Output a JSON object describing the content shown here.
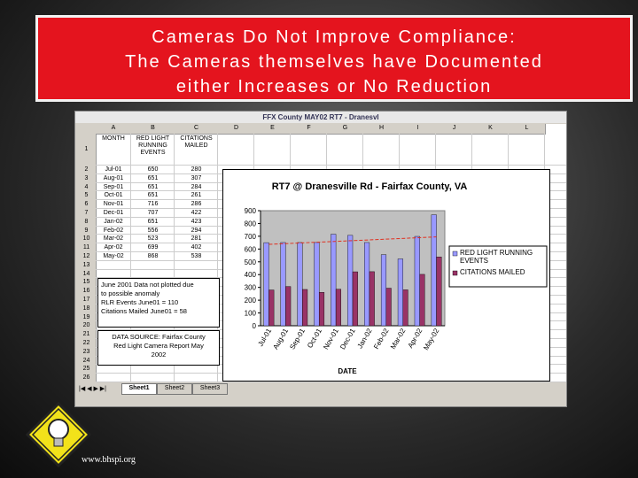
{
  "slide": {
    "title_lines": [
      "Cameras Do Not Improve Compliance:",
      "The Cameras themselves have Documented",
      "either Increases or No Reduction"
    ],
    "footer": "www.bhspi.org"
  },
  "window": {
    "title": "FFX County MAY02 RT7 - Dranesvl",
    "columns": [
      "A",
      "B",
      "C",
      "D",
      "E",
      "F",
      "G",
      "H",
      "I",
      "J",
      "K",
      "L"
    ],
    "row_numbers": [
      1,
      2,
      3,
      4,
      5,
      6,
      7,
      8,
      9,
      10,
      11,
      12,
      13,
      14,
      15,
      16,
      17,
      18,
      19,
      20,
      21,
      22,
      23,
      24,
      25,
      26
    ],
    "month_header": "MONTH",
    "note_lines": [
      "June 2001 Data not plotted due",
      "to possible anomaly",
      "RLR Events June01 = 110",
      "Citations Mailed June01 = 58"
    ],
    "source_lines": [
      "DATA SOURCE: Fairfax County",
      "Red Light Camera Report May",
      "2002"
    ],
    "sheets": [
      "Sheet1",
      "Sheet2",
      "Sheet3"
    ]
  },
  "chart_data": {
    "type": "bar",
    "title": "RT7 @ Dranesville Rd - Fairfax County, VA",
    "x_label": "DATE",
    "categories": [
      "Jul-01",
      "Aug-01",
      "Sep-01",
      "Oct-01",
      "Nov-01",
      "Dec-01",
      "Jan-02",
      "Feb-02",
      "Mar-02",
      "Apr-02",
      "May-02"
    ],
    "series": [
      {
        "name": "RED LIGHT RUNNING EVENTS",
        "color": "#9999ff",
        "values": [
          650,
          651,
          651,
          651,
          716,
          707,
          651,
          556,
          523,
          699,
          868
        ]
      },
      {
        "name": "CITATIONS MAILED",
        "color": "#993366",
        "values": [
          280,
          307,
          284,
          261,
          286,
          422,
          423,
          294,
          281,
          402,
          538
        ]
      }
    ],
    "ylim": [
      0,
      900
    ],
    "yticks": [
      0,
      100,
      200,
      300,
      400,
      500,
      600,
      700,
      800,
      900
    ],
    "trendline": true,
    "trendline_color": "#e03020",
    "legend": "right"
  }
}
